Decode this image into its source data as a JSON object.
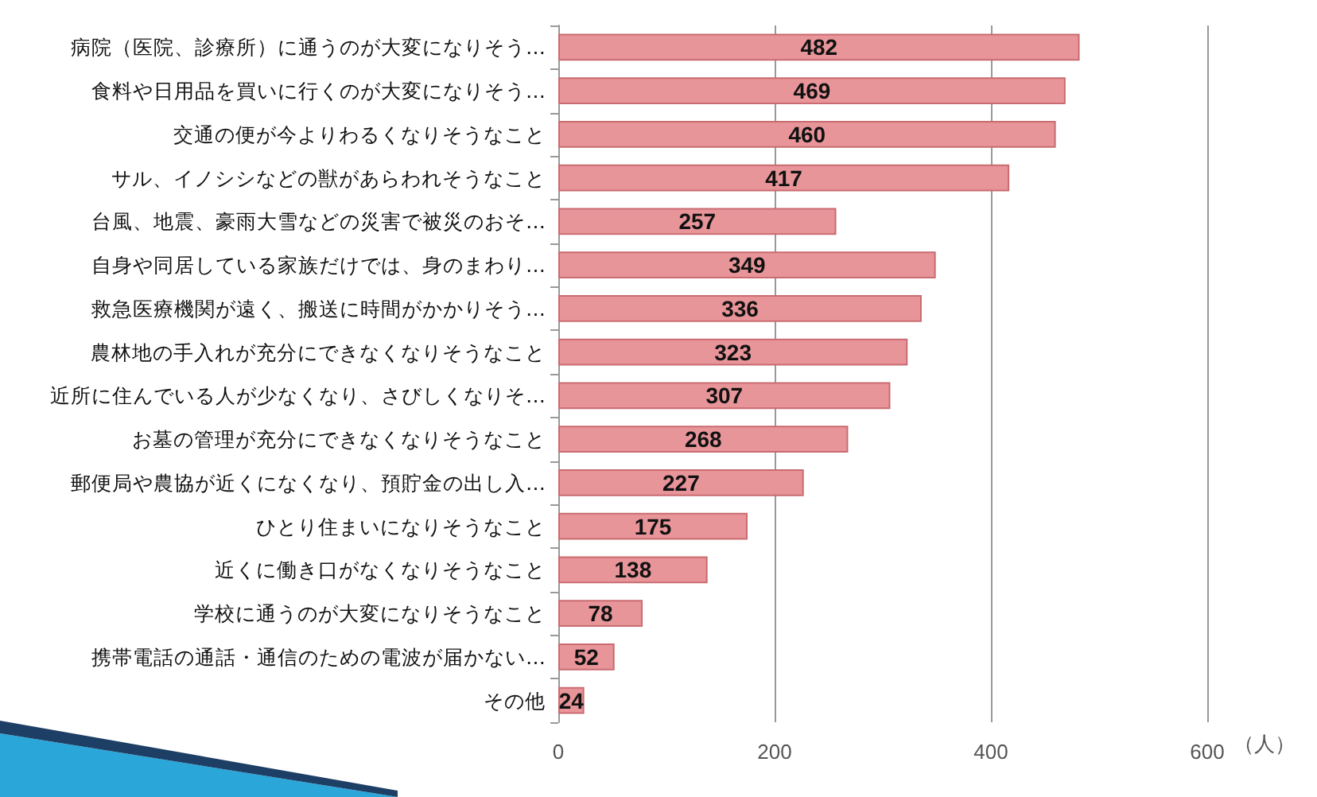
{
  "chart_data": {
    "type": "bar",
    "orientation": "horizontal",
    "xlabel": "（人）",
    "categories": [
      "病院（医院、診療所）に通うのが大変になりそう…",
      "食料や日用品を買いに行くのが大変になりそう…",
      "交通の便が今よりわるくなりそうなこと",
      "サル、イノシシなどの獣があらわれそうなこと",
      "台風、地震、豪雨大雪などの災害で被災のおそ…",
      "自身や同居している家族だけでは、身のまわり…",
      "救急医療機関が遠く、搬送に時間がかかりそう…",
      "農林地の手入れが充分にできなくなりそうなこと",
      "近所に住んでいる人が少なくなり、さびしくなりそ…",
      "お墓の管理が充分にできなくなりそうなこと",
      "郵便局や農協が近くになくなり、預貯金の出し入…",
      "ひとり住まいになりそうなこと",
      "近くに働き口がなくなりそうなこと",
      "学校に通うのが大変になりそうなこと",
      "携帯電話の通話・通信のための電波が届かない…",
      "その他"
    ],
    "values": [
      482,
      469,
      460,
      417,
      257,
      349,
      336,
      323,
      307,
      268,
      227,
      175,
      138,
      78,
      52,
      24
    ],
    "color": "#e8959a",
    "data_labels": true,
    "xlim": [
      0,
      600
    ],
    "xticks": [
      0,
      200,
      400,
      600
    ],
    "grid": "x"
  }
}
